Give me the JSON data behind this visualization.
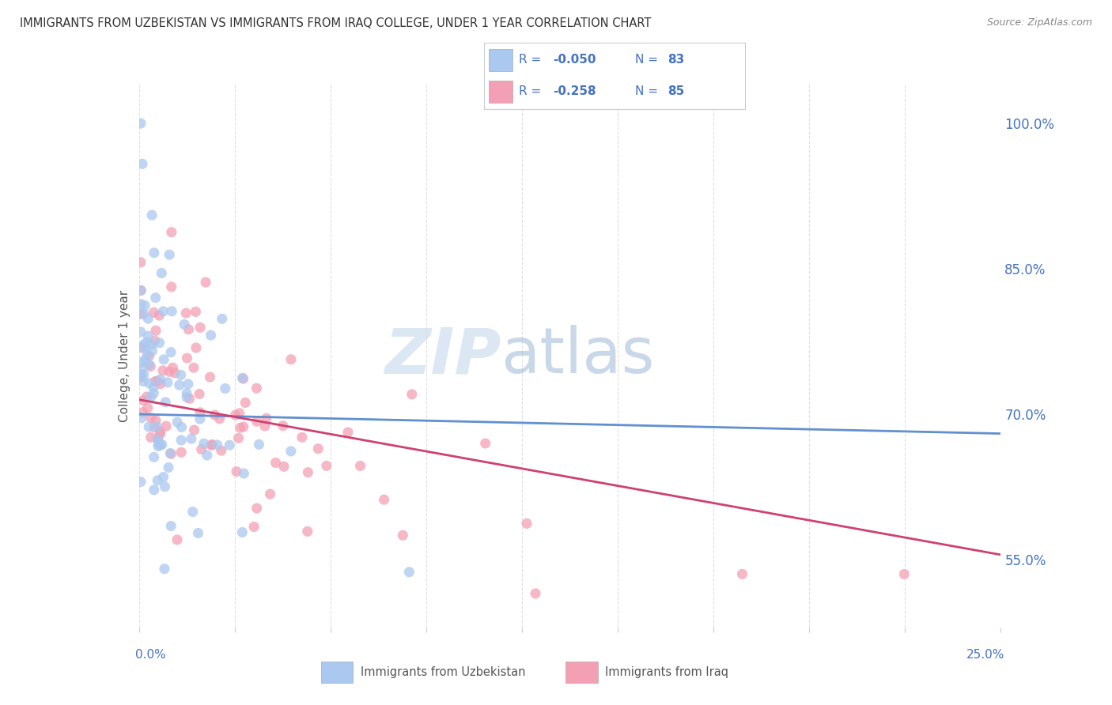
{
  "title": "IMMIGRANTS FROM UZBEKISTAN VS IMMIGRANTS FROM IRAQ COLLEGE, UNDER 1 YEAR CORRELATION CHART",
  "source": "Source: ZipAtlas.com",
  "ylabel": "College, Under 1 year",
  "ylabel_right_ticks": [
    "55.0%",
    "70.0%",
    "85.0%",
    "100.0%"
  ],
  "ylabel_right_vals": [
    0.55,
    0.7,
    0.85,
    1.0
  ],
  "xmin": 0.0,
  "xmax": 0.25,
  "ymin": 0.48,
  "ymax": 1.04,
  "r_uzbekistan": -0.05,
  "n_uzbekistan": 83,
  "r_iraq": -0.258,
  "n_iraq": 85,
  "color_uzbekistan": "#aac8f0",
  "color_iraq": "#f4a0b4",
  "line_color_uzbekistan": "#6090d0",
  "line_color_iraq": "#d04070",
  "legend_label_uzbekistan": "Immigrants from Uzbekistan",
  "legend_label_iraq": "Immigrants from Iraq",
  "watermark_zip": "ZIP",
  "watermark_atlas": "atlas",
  "background_color": "#ffffff",
  "grid_color": "#e0e0e0",
  "legend_text_color": "#4472c4",
  "tick_label_color": "#4472c4"
}
